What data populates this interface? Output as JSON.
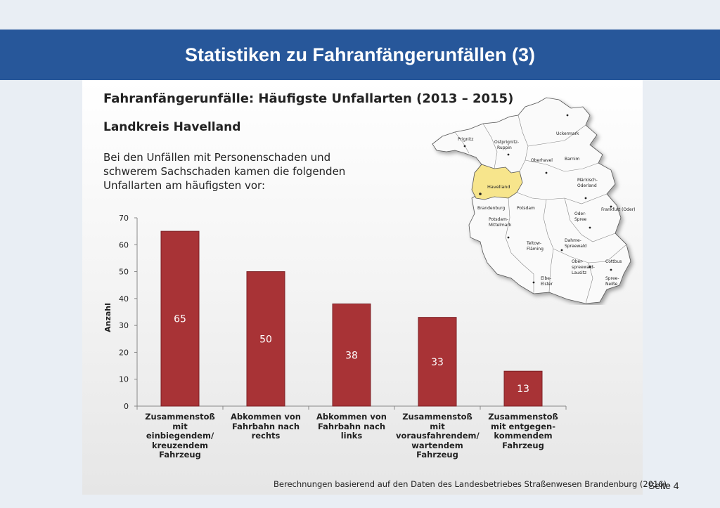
{
  "slide": {
    "title": "Statistiken zu Fahranfängerunfällen (3)",
    "page": "Seite 4"
  },
  "panel": {
    "title": "Fahranfängerunfälle: Häufigste Unfallarten (2013 – 2015)",
    "subtitle": "Landkreis Havelland",
    "description": "Bei den Unfällen mit Personenschaden und schwerem Sachschaden kamen die folgenden Unfallarten am häufigsten vor:",
    "footnote": "Berechnungen basierend auf den Daten des Landesbetriebes Straßenwesen Brandenburg (2016)"
  },
  "chart_data": {
    "type": "bar",
    "title": "",
    "xlabel": "",
    "ylabel": "Anzahl",
    "ylim": [
      0,
      70
    ],
    "yticks": [
      0,
      10,
      20,
      30,
      40,
      50,
      60,
      70
    ],
    "grid": false,
    "categories": [
      "Zusammenstoß mit einbiegendem/ kreuzendem Fahrzeug",
      "Abkommen von Fahrbahn nach rechts",
      "Abkommen von Fahrbahn nach links",
      "Zusammenstoß mit vorausfahrendem/ wartendem Fahrzeug",
      "Zusammenstoß mit entgegen- kommendem Fahrzeug"
    ],
    "category_lines": [
      "Zusammenstoß\nmit\neinbiegendem/\nkreuzendem\nFahrzeug",
      "Abkommen von\nFahrbahn nach\nrechts",
      "Abkommen von\nFahrbahn nach\nlinks",
      "Zusammenstoß\nmit\nvorausfahrendem/\nwartendem\nFahrzeug",
      "Zusammenstoß\nmit entgegen-\nkommendem\nFahrzeug"
    ],
    "values": [
      65,
      50,
      38,
      33,
      13
    ],
    "data_labels": [
      "65",
      "50",
      "38",
      "33",
      "13"
    ],
    "colors": {
      "bar": "#a83336",
      "bar_edge": "#7d2226",
      "bar_label": "#ffffff"
    }
  },
  "map": {
    "highlight_color": "#f7e58c",
    "regions": [
      "Prignitz",
      "Ostprignitz-Ruppin",
      "Uckermark",
      "Oberhavel",
      "Barnim",
      "Havelland",
      "Märkisch-Oderland",
      "Frankfurt (Oder)",
      "Brandenburg",
      "Potsdam",
      "Potsdam-Mittelmark",
      "Oder-Spree",
      "Teltow-Fläming",
      "Dahme-Spreewald",
      "Ober-spreewald-Lausitz",
      "Cottbus",
      "Elbe-Elster",
      "Spree-Neiße"
    ],
    "highlighted": "Havelland"
  }
}
